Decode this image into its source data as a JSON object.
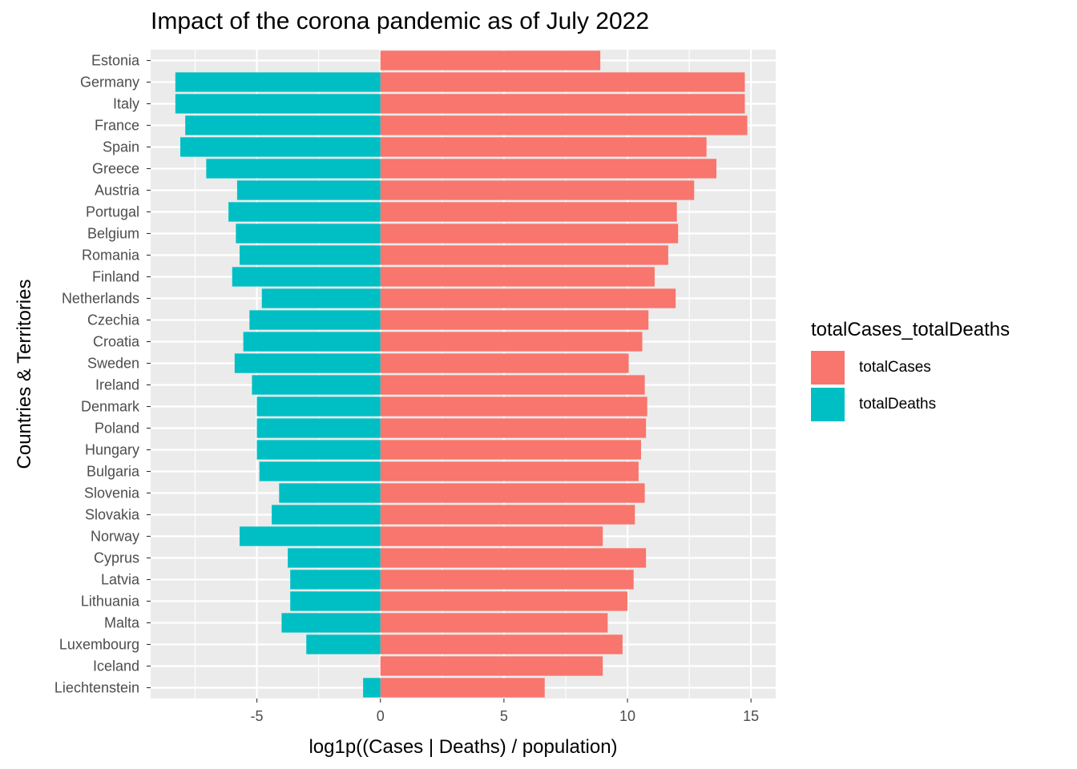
{
  "chart_data": {
    "type": "bar",
    "orientation": "horizontal",
    "title": "Impact of the corona pandemic as of July 2022",
    "xlabel": "log1p((Cases | Deaths) / population)",
    "ylabel": "Countries & Territories",
    "xlim": [
      -9.3,
      16.0
    ],
    "xticks": [
      -5,
      0,
      5,
      10,
      15
    ],
    "xtick_labels": [
      "-5",
      "0",
      "5",
      "10",
      "15"
    ],
    "grid": true,
    "legend_position": "right",
    "legend_title": "totalCases_totalDeaths",
    "categories": [
      "Estonia",
      "Germany",
      "Italy",
      "France",
      "Spain",
      "Greece",
      "Austria",
      "Portugal",
      "Belgium",
      "Romania",
      "Finland",
      "Netherlands",
      "Czechia",
      "Croatia",
      "Sweden",
      "Ireland",
      "Denmark",
      "Poland",
      "Hungary",
      "Bulgaria",
      "Slovenia",
      "Slovakia",
      "Norway",
      "Cyprus",
      "Latvia",
      "Lithuania",
      "Malta",
      "Luxembourg",
      "Iceland",
      "Liechtenstein"
    ],
    "series": [
      {
        "name": "totalCases",
        "color": "#F8766D",
        "values": [
          8.9,
          14.75,
          14.75,
          14.85,
          13.2,
          13.6,
          12.7,
          12.0,
          12.05,
          11.65,
          11.1,
          11.95,
          10.85,
          10.6,
          10.05,
          10.7,
          10.8,
          10.75,
          10.55,
          10.45,
          10.7,
          10.3,
          9.0,
          10.75,
          10.25,
          10.0,
          9.2,
          9.8,
          9.0,
          6.65
        ]
      },
      {
        "name": "totalDeaths",
        "color": "#00BFC4",
        "values": [
          0,
          -8.3,
          -8.3,
          -7.9,
          -8.1,
          -7.05,
          -5.8,
          -6.15,
          -5.85,
          -5.7,
          -6.0,
          -4.8,
          -5.3,
          -5.55,
          -5.9,
          -5.2,
          -5.0,
          -5.0,
          -5.0,
          -4.9,
          -4.1,
          -4.4,
          -5.7,
          -3.75,
          -3.65,
          -3.65,
          -4.0,
          -3.0,
          0,
          -0.7
        ]
      }
    ]
  },
  "legend": {
    "title": "totalCases_totalDeaths",
    "items": [
      {
        "label": "totalCases",
        "color": "#F8766D"
      },
      {
        "label": "totalDeaths",
        "color": "#00BFC4"
      }
    ]
  }
}
